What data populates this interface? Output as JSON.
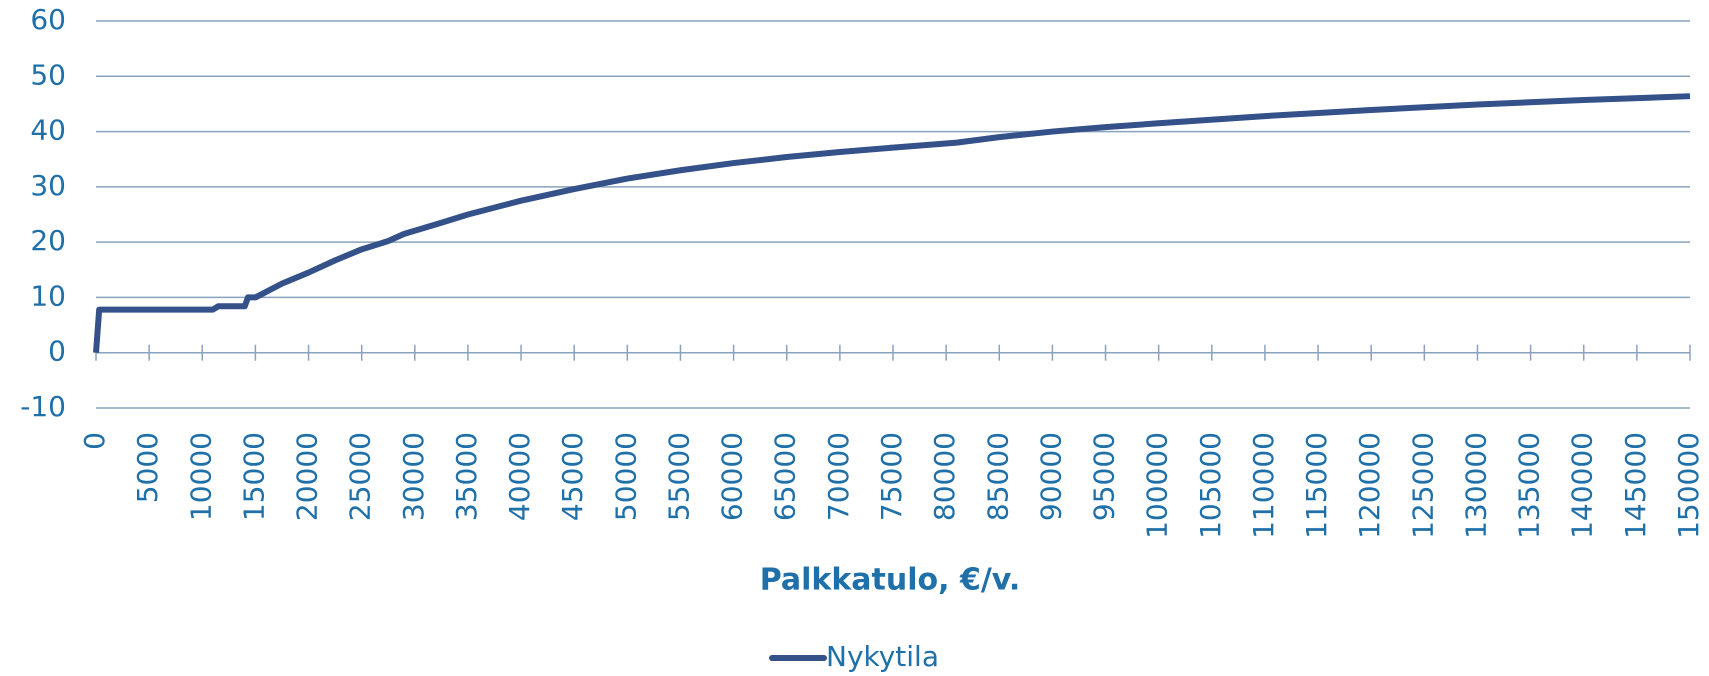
{
  "chart_data": {
    "type": "line",
    "xlabel": "Palkkatulo, €/v.",
    "x": [
      0,
      300,
      11000,
      11500,
      14000,
      14300,
      15000,
      17500,
      20000,
      22500,
      25000,
      27500,
      29000,
      32500,
      35000,
      40000,
      45000,
      50000,
      55000,
      60000,
      65000,
      70000,
      75000,
      81000,
      85000,
      90000,
      95000,
      100000,
      110000,
      120000,
      130000,
      140000,
      150000
    ],
    "series": [
      {
        "name": "Nykytila",
        "color": "#34518a",
        "values": [
          0,
          7.8,
          7.8,
          8.4,
          8.4,
          10,
          10,
          12.5,
          14.5,
          16.7,
          18.7,
          20.2,
          21.5,
          23.5,
          25,
          27.5,
          29.6,
          31.5,
          33,
          34.3,
          35.4,
          36.3,
          37.1,
          38,
          39,
          40,
          40.8,
          41.5,
          42.8,
          43.9,
          44.9,
          45.7,
          46.4
        ]
      }
    ],
    "xlim": [
      0,
      150000
    ],
    "xticks": [
      0,
      5000,
      10000,
      15000,
      20000,
      25000,
      30000,
      35000,
      40000,
      45000,
      50000,
      55000,
      60000,
      65000,
      70000,
      75000,
      80000,
      85000,
      90000,
      95000,
      100000,
      105000,
      110000,
      115000,
      120000,
      125000,
      130000,
      135000,
      140000,
      145000,
      150000
    ],
    "ylim": [
      -10,
      60
    ],
    "yticks": [
      -10,
      0,
      10,
      20,
      30,
      40,
      50,
      60
    ],
    "grid": true,
    "legend": "bottom"
  }
}
